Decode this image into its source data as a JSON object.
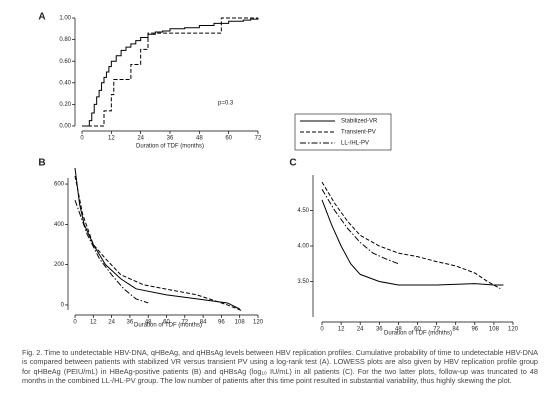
{
  "chart_data": [
    {
      "panel": "A",
      "type": "step",
      "x_label": "Duration of TDF (months)",
      "annotation": "p=0.3",
      "xlim": [
        0,
        72
      ],
      "xticks": [
        0,
        12,
        24,
        36,
        48,
        60,
        72
      ],
      "ylim": [
        0,
        1
      ],
      "yticks": [
        {
          "value": 0,
          "label": "0.00"
        },
        {
          "value": 0.2,
          "label": "0.20"
        },
        {
          "value": 0.4,
          "label": "0.40"
        },
        {
          "value": 0.6,
          "label": "0.60"
        },
        {
          "value": 0.8,
          "label": "0.80"
        },
        {
          "value": 1,
          "label": "1.00"
        }
      ],
      "series": [
        {
          "dash": "solid",
          "color": "#000000",
          "x": [
            0,
            3,
            4,
            5,
            6,
            7,
            8,
            9,
            10,
            11,
            12,
            14,
            16,
            18,
            20,
            22,
            24,
            27,
            30,
            33,
            36,
            42,
            48,
            54,
            60,
            66,
            69,
            72
          ],
          "values": [
            0,
            0.05,
            0.12,
            0.2,
            0.27,
            0.33,
            0.4,
            0.45,
            0.5,
            0.55,
            0.6,
            0.65,
            0.7,
            0.73,
            0.76,
            0.79,
            0.82,
            0.85,
            0.87,
            0.88,
            0.9,
            0.91,
            0.93,
            0.95,
            0.97,
            0.98,
            0.99,
            1
          ]
        },
        {
          "dash": "dashed",
          "color": "#000000",
          "x": [
            0,
            9,
            12,
            13,
            20,
            24,
            27,
            57
          ],
          "values": [
            0,
            0.14,
            0.29,
            0.43,
            0.57,
            0.71,
            0.86,
            1
          ]
        }
      ]
    },
    {
      "panel": "B",
      "type": "line",
      "x_label": "Duration of TDF (months)",
      "xlim": [
        0,
        120
      ],
      "xticks": [
        0,
        12,
        24,
        36,
        48,
        60,
        72,
        84,
        96,
        108,
        120
      ],
      "ylim": [
        -25,
        630
      ],
      "yticks": [
        0,
        200,
        400,
        600
      ],
      "series": [
        {
          "name": "Stabilized-VR",
          "dash": "solid",
          "color": "#000000",
          "x": [
            0,
            3,
            6,
            12,
            20,
            30,
            40,
            60,
            80,
            100,
            108
          ],
          "values": [
            680,
            500,
            400,
            300,
            200,
            130,
            80,
            50,
            30,
            10,
            -20
          ]
        },
        {
          "name": "Transient-PV",
          "dash": "dashed",
          "color": "#000000",
          "x": [
            0,
            5,
            12,
            20,
            30,
            45,
            80,
            100,
            110
          ],
          "values": [
            640,
            450,
            300,
            230,
            150,
            100,
            50,
            0,
            -30
          ]
        },
        {
          "name": "LL-/HL-PV",
          "dash": "dashdot",
          "color": "#000000",
          "x": [
            0,
            8,
            16,
            24,
            32,
            40,
            48
          ],
          "values": [
            520,
            350,
            230,
            150,
            80,
            30,
            10
          ]
        }
      ]
    },
    {
      "panel": "C",
      "type": "line",
      "x_label": "Duration of TDF (months)",
      "xlim": [
        0,
        120
      ],
      "xticks": [
        0,
        12,
        24,
        36,
        48,
        60,
        72,
        84,
        96,
        108,
        120
      ],
      "ylim": [
        3,
        5
      ],
      "yticks": [
        {
          "value": 3.5,
          "label": "3.50"
        },
        {
          "value": 4,
          "label": "4.00"
        },
        {
          "value": 4.5,
          "label": "4.50"
        }
      ],
      "series": [
        {
          "dash": "solid",
          "color": "#000000",
          "x": [
            0,
            6,
            12,
            18,
            24,
            36,
            48,
            72,
            96,
            108,
            114
          ],
          "values": [
            4.65,
            4.3,
            4.0,
            3.75,
            3.6,
            3.5,
            3.45,
            3.45,
            3.47,
            3.45,
            3.45
          ]
        },
        {
          "dash": "dashed",
          "color": "#000000",
          "x": [
            0,
            8,
            16,
            24,
            36,
            48,
            60,
            72,
            84,
            96,
            104,
            112
          ],
          "values": [
            4.9,
            4.6,
            4.35,
            4.15,
            4.0,
            3.9,
            3.85,
            3.78,
            3.72,
            3.62,
            3.5,
            3.4
          ]
        },
        {
          "dash": "dashdot",
          "color": "#000000",
          "x": [
            0,
            8,
            16,
            24,
            32,
            40,
            48
          ],
          "values": [
            4.8,
            4.5,
            4.25,
            4.05,
            3.9,
            3.82,
            3.75
          ]
        }
      ]
    }
  ],
  "caption": "Fig. 2. Time to undetectable HBV-DNA, qHBeAg, and qHBsAg levels between HBV replication profiles. Cumulative probability of time to undetectable HBV-DNA is compared between patients with stabilized VR versus transient PV using a log-rank test (A). LOWESS plots are also given by HBV replication profile group for qHBeAg (PEIU/mL) in HBeAg-positive patients (B) and qHBsAg (log₁₀ IU/mL) in all patients (C). For the two latter plots, follow-up was truncated to 48 months in the combined LL-/HL-PV group. The low number of patients after this time point resulted in substantial variability, thus highly skewing the plot."
}
